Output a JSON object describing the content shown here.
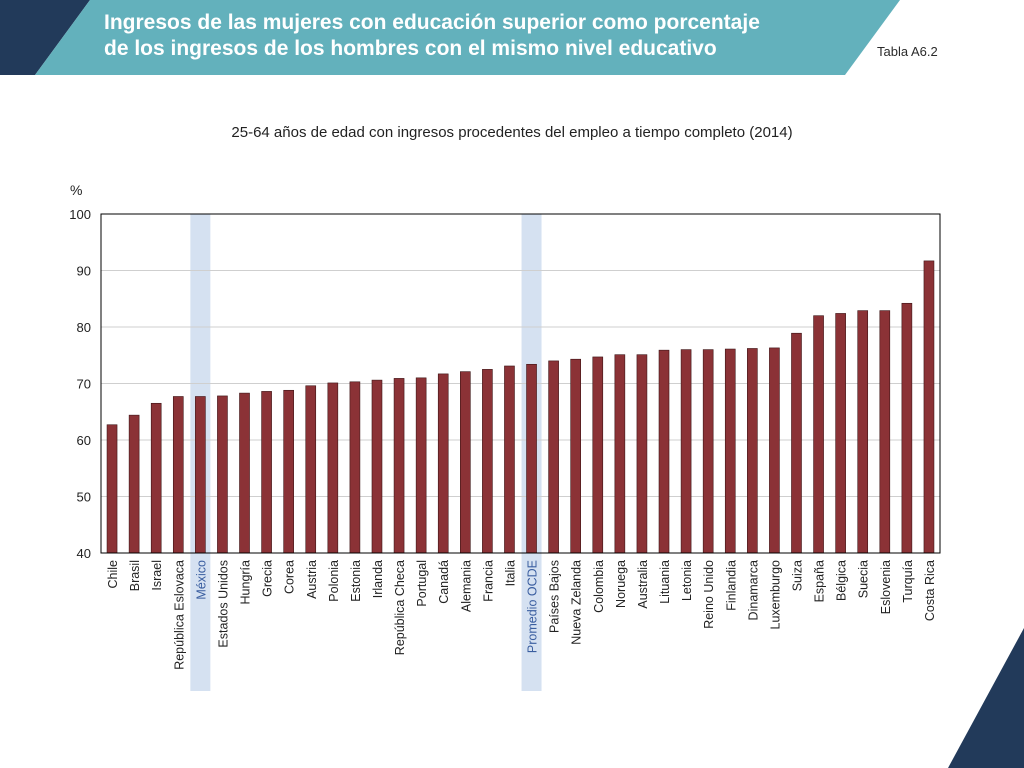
{
  "header": {
    "title_line1": "Ingresos de las mujeres con educación superior como porcentaje",
    "title_line2": "de los ingresos de los hombres con el mismo nivel educativo",
    "table_ref": "Tabla A6.2",
    "dark_color": "#223a5a",
    "teal_color": "#63b1bc"
  },
  "chart_data": {
    "type": "bar",
    "title": "25-64 años de edad con ingresos procedentes del empleo a tiempo completo (2014)",
    "ylabel": "%",
    "xlabel": "",
    "ylim": [
      40,
      100
    ],
    "yticks": [
      40,
      50,
      60,
      70,
      80,
      90,
      100
    ],
    "grid": true,
    "bar_color": "#8b3236",
    "highlight_color": "#d5e1f1",
    "highlighted": [
      "México",
      "Promedio OCDE"
    ],
    "categories": [
      "Chile",
      "Brasil",
      "Israel",
      "República Eslovaca",
      "México",
      "Estados Unidos",
      "Hungría",
      "Grecia",
      "Corea",
      "Austria",
      "Polonia",
      "Estonia",
      "Irlanda",
      "República Checa",
      "Portugal",
      "Canadá",
      "Alemania",
      "Francia",
      "Italia",
      "Promedio OCDE",
      "Países Bajos",
      "Nueva Zelanda",
      "Colombia",
      "Noruega",
      "Australia",
      "Lituania",
      "Letonia",
      "Reino Unido",
      "Finlandia",
      "Dinamarca",
      "Luxemburgo",
      "Suiza",
      "España",
      "Bélgica",
      "Suecia",
      "Eslovenia",
      "Turquía",
      "Costa Rica"
    ],
    "values": [
      62.7,
      64.4,
      66.5,
      67.7,
      67.7,
      67.8,
      68.3,
      68.6,
      68.8,
      69.6,
      70.1,
      70.3,
      70.6,
      70.9,
      71.0,
      71.7,
      72.1,
      72.5,
      73.1,
      73.4,
      74.0,
      74.3,
      74.7,
      75.1,
      75.1,
      75.9,
      76.0,
      76.0,
      76.1,
      76.2,
      76.3,
      78.9,
      82.0,
      82.4,
      82.9,
      82.9,
      84.2,
      91.7
    ]
  }
}
